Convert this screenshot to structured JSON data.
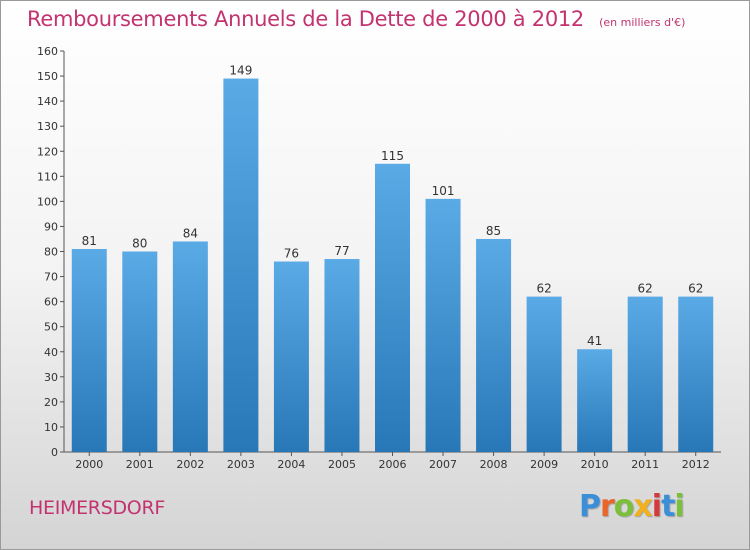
{
  "chart_data": {
    "type": "bar",
    "title": "Remboursements Annuels de la Dette de 2000 à 2012",
    "subtitle": "(en milliers d'€)",
    "categories": [
      "2000",
      "2001",
      "2002",
      "2003",
      "2004",
      "2005",
      "2006",
      "2007",
      "2008",
      "2009",
      "2010",
      "2011",
      "2012"
    ],
    "values": [
      81,
      80,
      84,
      149,
      76,
      77,
      115,
      101,
      85,
      62,
      41,
      62,
      62
    ],
    "ylim": [
      0,
      160
    ],
    "ytick_step": 10,
    "grid": false,
    "legend": "none",
    "bar_color_top": "#5aaae6",
    "bar_color_bottom": "#2878b8"
  },
  "commune_name": "HEIMERSDORF",
  "brand": {
    "letters": [
      "P",
      "r",
      "o",
      "x",
      "i",
      "t",
      "i"
    ],
    "colors": [
      "#3a8fd8",
      "#e8662a",
      "#7cbf3a",
      "#f0b020",
      "#d43a3a",
      "#3a8fd8",
      "#7cbf3a"
    ]
  }
}
